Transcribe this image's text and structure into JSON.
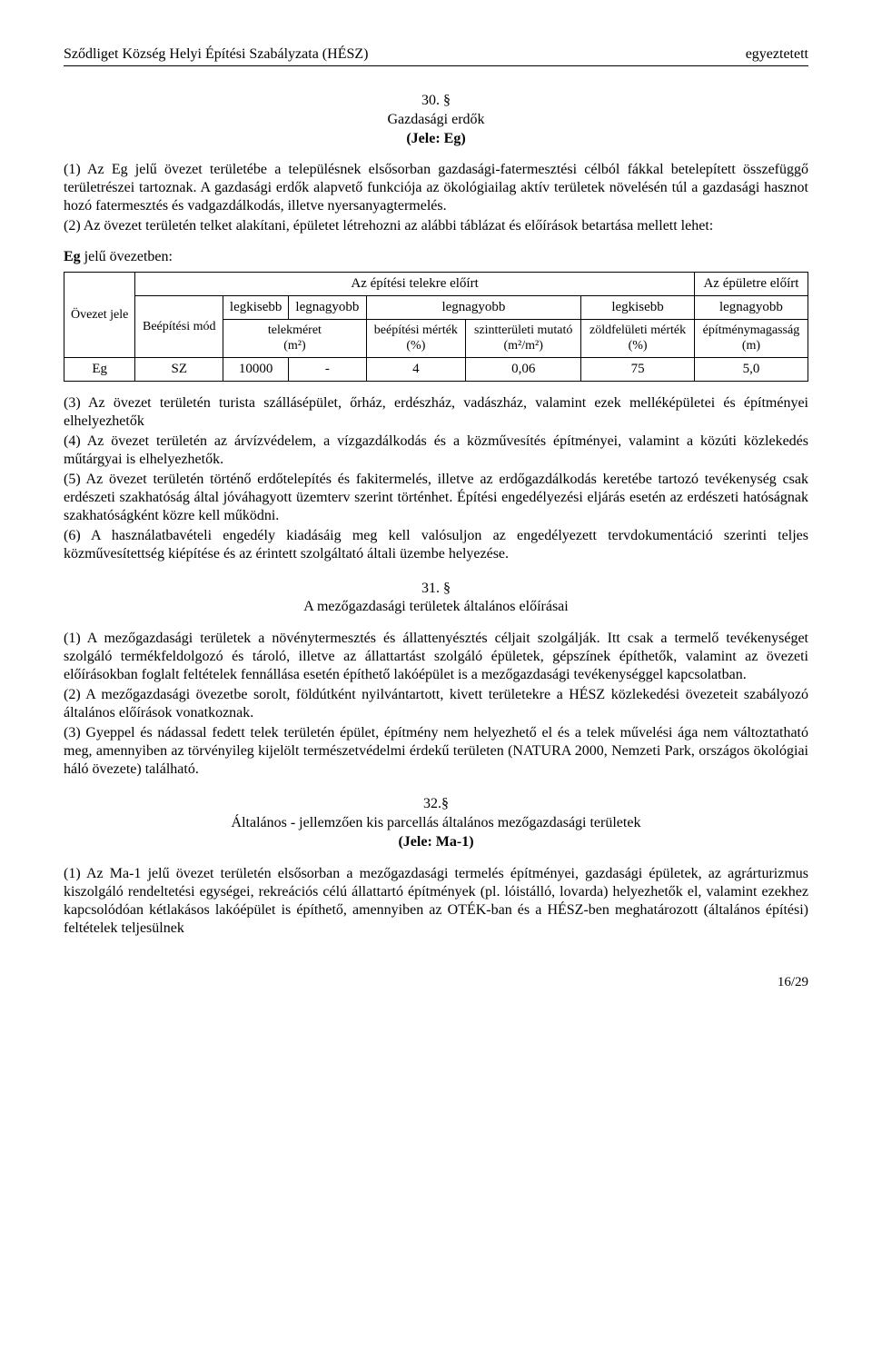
{
  "header": {
    "left": "Sződliget Község Helyi Építési Szabályzata (HÉSZ)",
    "right": "egyeztetett"
  },
  "section30": {
    "num": "30. §",
    "title1": "Gazdasági erdők",
    "title2": "(Jele: Eg)",
    "p1": "(1) Az Eg jelű övezet területébe a településnek elsősorban gazdasági-fatermesztési célból fákkal betelepített összefüggő területrészei tartoznak. A gazdasági erdők alapvető funkciója az ökológiailag aktív területek növelésén túl a gazdasági hasznot hozó fatermesztés és vadgazdálkodás, illetve nyersanyagtermelés.",
    "p2": "(2) Az övezet területén telket alakítani, épületet létrehozni az alábbi táblázat és előírások betartása mellett lehet:"
  },
  "tableEg": {
    "caption_prefix": "Eg",
    "caption_suffix": " jelű övezetben:",
    "head": {
      "telekre": "Az építési telekre előírt",
      "epuletre": "Az épületre előírt",
      "ovezet_jele": "Övezet jele",
      "beepitesi_mod": "Beépítési mód",
      "legkisebb": "legkisebb",
      "legnagyobb": "legnagyobb",
      "telekmeret": "telekméret",
      "telekmeret_unit": "(m²)",
      "beepitesi_mertek": "beépítési mérték",
      "pct": "(%)",
      "szintteruleti": "szintterületi mutató",
      "szint_unit": "(m²/m²)",
      "zoldfeluleti": "zöldfelületi mérték",
      "epitmenymagassag": "építménymagasság",
      "mag_unit": "(m)"
    },
    "row": {
      "jele": "Eg",
      "mod": "SZ",
      "telek_min": "10000",
      "telek_max": "-",
      "beep_max": "4",
      "szint": "0,06",
      "zold_min": "75",
      "mag_max": "5,0"
    }
  },
  "section30_after": {
    "p3": "(3) Az övezet területén turista szállásépület, őrház, erdészház, vadászház, valamint ezek melléképületei és építményei elhelyezhetők",
    "p4": "(4) Az övezet területén az árvízvédelem, a vízgazdálkodás és a közművesítés építményei, valamint a közúti közlekedés műtárgyai is elhelyezhetők.",
    "p5": "(5) Az övezet területén történő erdőtelepítés és fakitermelés, illetve az erdőgazdálkodás keretébe tartozó tevékenység csak erdészeti szakhatóság által jóváhagyott üzemterv szerint történhet. Építési engedélyezési eljárás esetén az erdészeti hatóságnak szakhatóságként közre kell működni.",
    "p6": "(6) A használatbavételi engedély kiadásáig meg kell valósuljon az engedélyezett tervdokumentáció szerinti teljes közművesítettség kiépítése és az érintett szolgáltató általi üzembe helyezése."
  },
  "section31": {
    "num": "31. §",
    "title": "A mezőgazdasági területek általános előírásai",
    "p1": "(1) A mezőgazdasági területek a növénytermesztés és állattenyésztés céljait szolgálják. Itt csak a termelő tevékenységet szolgáló termékfeldolgozó és tároló, illetve az állattartást szolgáló épületek, gépszínek építhetők, valamint az övezeti előírásokban foglalt feltételek fennállása esetén építhető lakóépület is a mezőgazdasági tevékenységgel kapcsolatban.",
    "p2": "(2) A mezőgazdasági övezetbe sorolt, földútként nyilvántartott, kivett területekre a HÉSZ közlekedési övezeteit szabályozó általános előírások vonatkoznak.",
    "p3": "(3) Gyeppel és nádassal fedett telek területén épület, építmény nem helyezhető el és a telek művelési ága nem változtatható meg, amennyiben az törvényileg  kijelölt természetvédelmi érdekű területen (NATURA 2000, Nemzeti Park, országos ökológiai háló övezete) található."
  },
  "section32": {
    "num": "32.§",
    "title1": "Általános - jellemzően kis parcellás általános mezőgazdasági területek",
    "title2": "(Jele: Ma-1)",
    "p1": "(1) Az Ma-1 jelű övezet területén elsősorban a mezőgazdasági termelés építményei, gazdasági épületek, az agrárturizmus kiszolgáló rendeltetési egységei, rekreációs célú állattartó építmények (pl. lóistálló, lovarda) helyezhetők el, valamint ezekhez kapcsolódóan kétlakásos lakóépület is építhető, amennyiben az OTÉK-ban és a HÉSZ-ben meghatározott (általános építési) feltételek teljesülnek"
  },
  "pagenum": "16/29"
}
